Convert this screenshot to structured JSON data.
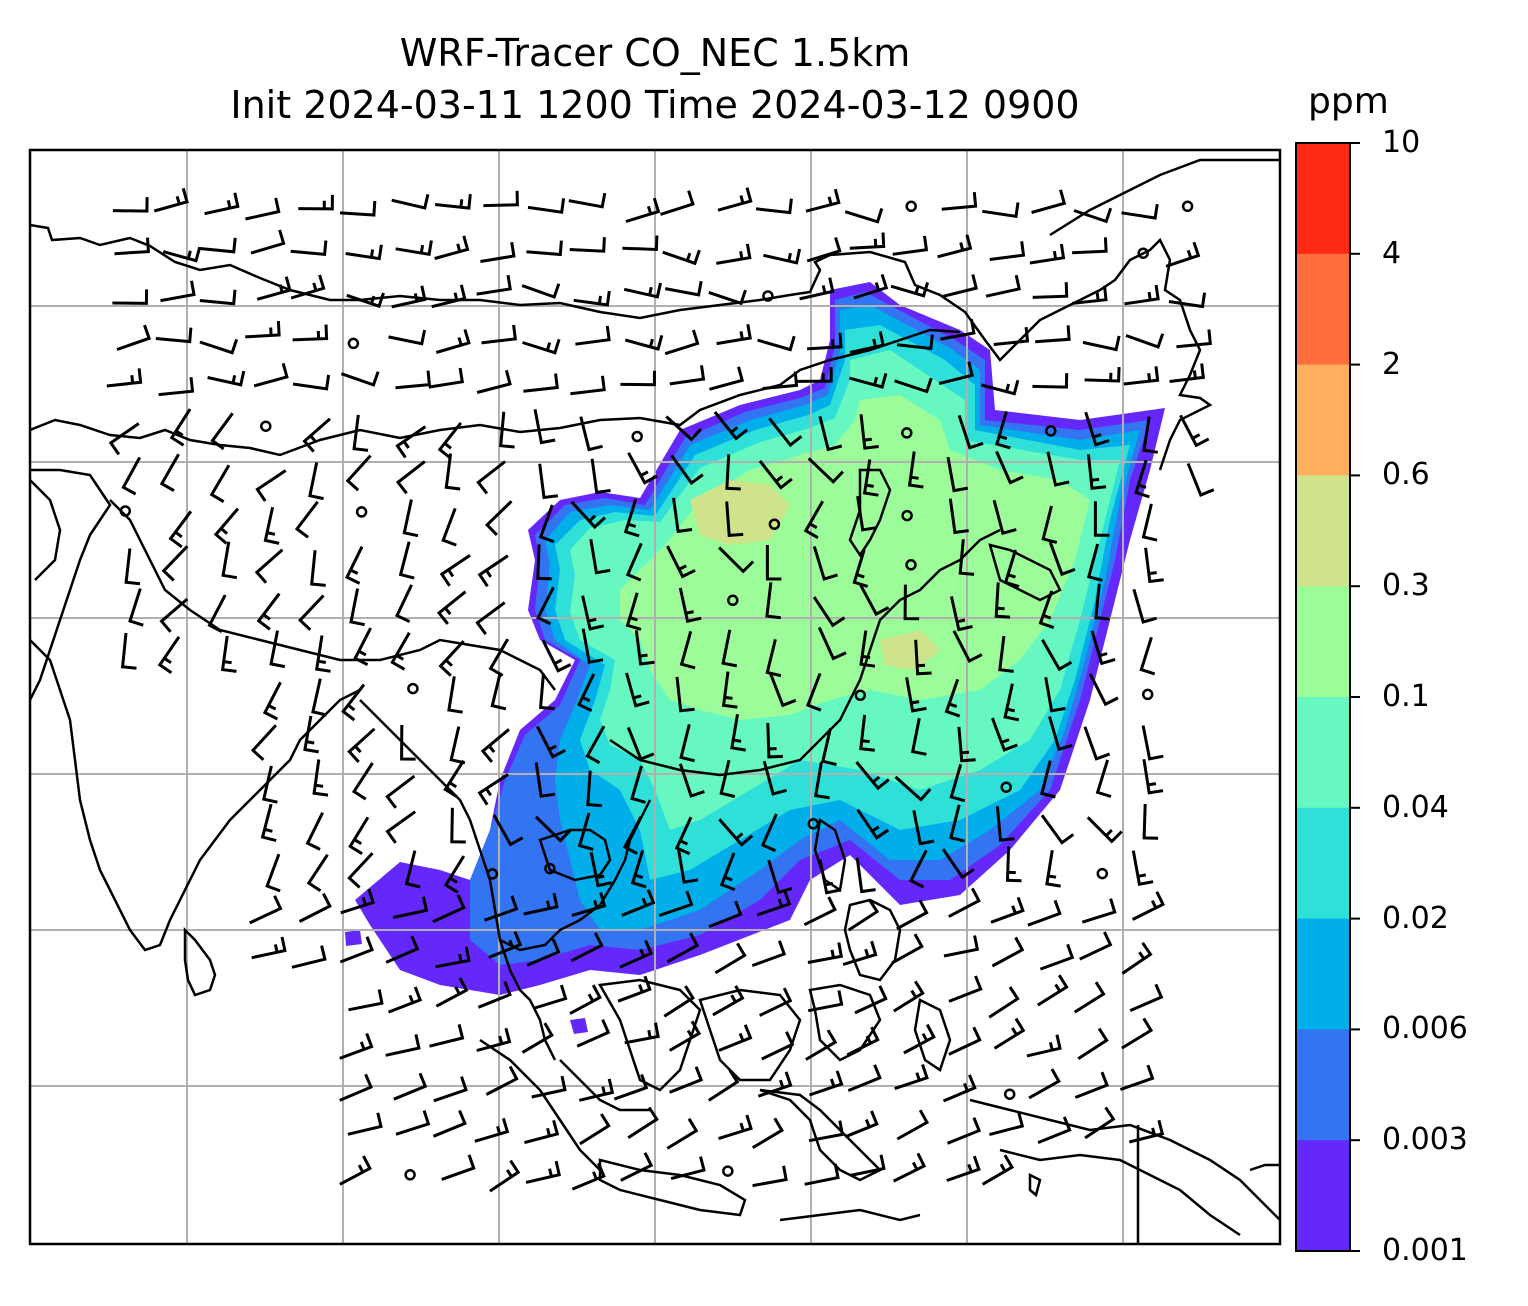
{
  "title_line1": "WRF-Tracer CO_NEC 1.5km",
  "title_line2": "Init 2024-03-11 1200 Time 2024-03-12 0900",
  "colorbar": {
    "unit": "ppm",
    "levels": [
      "10",
      "4",
      "2",
      "0.6",
      "0.3",
      "0.1",
      "0.04",
      "0.02",
      "0.006",
      "0.003",
      "0.001"
    ],
    "colors": [
      "#ff2a14",
      "#ff6e3c",
      "#ffae5e",
      "#cfe38a",
      "#9cfc9a",
      "#66f8c0",
      "#2ee0d8",
      "#00aeea",
      "#3374f2",
      "#6528fa"
    ]
  },
  "map": {
    "ocean_color": "#ffffff",
    "coastline_color": "#000000",
    "grid_color": "#b0b0b0",
    "wind_barb_color": "#000000"
  }
}
